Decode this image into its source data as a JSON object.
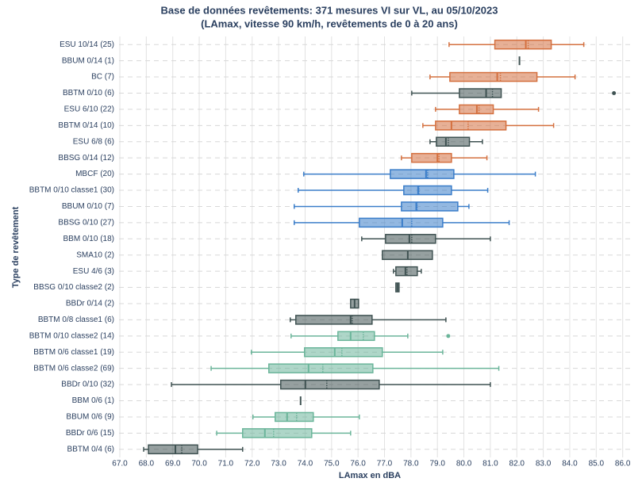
{
  "chart_data": {
    "type": "box",
    "title": "Base de données revêtements: 371 mesures VI sur VL, au 05/10/2023",
    "subtitle": "(LAmax, vitesse 90 km/h, revêtements de 0 à 20 ans)",
    "x_label": "LAmax en dBA",
    "y_label": "Type de revêtement",
    "categories": [
      "ESU 10/14 (25)",
      "BBUM 0/14 (1)",
      "BC (7)",
      "BBTM 0/10 (6)",
      "ESU 6/10 (22)",
      "BBTM 0/14 (10)",
      "ESU 6/8 (6)",
      "BBSG 0/14 (12)",
      "MBCF (20)",
      "BBTM 0/10 classe1 (30)",
      "BBUM 0/10 (7)",
      "BBSG 0/10 (27)",
      "BBM 0/10 (18)",
      "SMA10 (2)",
      "ESU 4/6 (3)",
      "BBSG 0/10 classe2 (2)",
      "BBDr 0/14 (2)",
      "BBTM 0/8 classe1 (6)",
      "BBTM 0/10 classe2 (14)",
      "BBTM 0/6 classe1 (19)",
      "BBTM 0/6 classe2 (69)",
      "BBDr 0/10 (32)",
      "BBM 0/6 (1)",
      "BBUM 0/6 (9)",
      "BBDr 0/6 (15)",
      "BBTM 0/4 (6)"
    ],
    "boxes": [
      {
        "min": 79.44,
        "q1": 81.17,
        "median": 82.34,
        "mean": 82.43,
        "q3": 83.3,
        "max": 84.53,
        "color": "#d4703f"
      },
      {
        "median": 82.1,
        "color": "#3f5252"
      },
      {
        "min": 78.72,
        "q1": 79.47,
        "median": 81.26,
        "mean": 81.38,
        "q3": 82.76,
        "max": 84.2,
        "color": "#d4703f"
      },
      {
        "min": 78.03,
        "q1": 79.83,
        "median": 80.84,
        "mean": 81.08,
        "q3": 81.41,
        "color": "#3f5252",
        "outliers": [
          85.67
        ]
      },
      {
        "min": 78.93,
        "q1": 79.83,
        "median": 80.49,
        "mean": 80.57,
        "q3": 81.11,
        "max": 82.82,
        "color": "#d4703f"
      },
      {
        "min": 78.45,
        "q1": 78.93,
        "median": 79.53,
        "mean": 80.16,
        "q3": 81.59,
        "max": 83.39,
        "color": "#d4703f"
      },
      {
        "min": 78.72,
        "q1": 78.96,
        "median": 79.32,
        "mean": 79.41,
        "q3": 80.21,
        "max": 80.7,
        "color": "#3f5252"
      },
      {
        "min": 77.64,
        "q1": 78.03,
        "median": 79.0,
        "mean": 79.06,
        "q3": 79.53,
        "max": 80.87,
        "color": "#d4703f"
      },
      {
        "min": 73.95,
        "q1": 77.22,
        "median": 78.57,
        "mean": 78.63,
        "q3": 79.62,
        "max": 82.7,
        "color": "#3a7dc9"
      },
      {
        "min": 73.74,
        "q1": 77.73,
        "median": 78.27,
        "mean": 78.3,
        "q3": 79.53,
        "max": 80.9,
        "color": "#3a7dc9"
      },
      {
        "min": 73.59,
        "q1": 77.64,
        "median": 78.2,
        "mean": 78.23,
        "q3": 79.77,
        "max": 80.19,
        "color": "#3a7dc9"
      },
      {
        "min": 73.59,
        "q1": 76.05,
        "median": 77.67,
        "mean": 78.03,
        "q3": 79.2,
        "max": 81.71,
        "color": "#3a7dc9"
      },
      {
        "min": 76.14,
        "q1": 77.04,
        "median": 77.94,
        "mean": 78.03,
        "q3": 78.93,
        "max": 81.0,
        "color": "#3f5252"
      },
      {
        "q1": 76.92,
        "median": 77.88,
        "q3": 78.81,
        "color": "#3f5252"
      },
      {
        "min": 77.34,
        "q1": 77.43,
        "median": 77.79,
        "mean": 77.85,
        "q3": 78.24,
        "max": 78.39,
        "color": "#3f5252"
      },
      {
        "q1": 77.43,
        "median": 77.49,
        "q3": 77.55,
        "color": "#3f5252"
      },
      {
        "q1": 75.72,
        "median": 75.87,
        "q3": 76.02,
        "color": "#3f5252"
      },
      {
        "min": 73.44,
        "q1": 73.65,
        "median": 75.72,
        "mean": 75.78,
        "q3": 76.53,
        "max": 79.32,
        "color": "#3f5252"
      },
      {
        "min": 73.47,
        "q1": 75.24,
        "median": 75.72,
        "mean": 76.2,
        "q3": 76.62,
        "max": 77.88,
        "color": "#6bb59a",
        "outliers": [
          79.41
        ]
      },
      {
        "min": 71.97,
        "q1": 73.98,
        "median": 75.12,
        "mean": 75.39,
        "q3": 76.92,
        "max": 79.2,
        "color": "#6bb59a"
      },
      {
        "min": 70.45,
        "q1": 72.63,
        "median": 74.13,
        "mean": 74.67,
        "q3": 76.56,
        "max": 81.32,
        "color": "#6bb59a"
      },
      {
        "min": 68.95,
        "q1": 73.08,
        "median": 74.01,
        "mean": 74.82,
        "q3": 76.8,
        "max": 81.0,
        "color": "#3f5252"
      },
      {
        "median": 73.83,
        "color": "#3f5252"
      },
      {
        "min": 72.03,
        "q1": 72.87,
        "median": 73.32,
        "mean": 73.68,
        "q3": 74.31,
        "max": 76.05,
        "color": "#6bb59a"
      },
      {
        "min": 70.66,
        "q1": 71.64,
        "median": 72.48,
        "mean": 72.81,
        "q3": 74.25,
        "max": 75.72,
        "color": "#6bb59a"
      },
      {
        "min": 67.9,
        "q1": 68.08,
        "median": 69.1,
        "mean": 69.34,
        "q3": 69.94,
        "max": 71.64,
        "color": "#3f5252"
      }
    ],
    "xlim": [
      66.97,
      86.4
    ],
    "xticks": [
      {
        "value": 67,
        "label": "67.0"
      },
      {
        "value": 68,
        "label": "68.0"
      },
      {
        "value": 69,
        "label": "69.0"
      },
      {
        "value": 70,
        "label": "70.0"
      },
      {
        "value": 71,
        "label": "71.0"
      },
      {
        "value": 72,
        "label": "72.0"
      },
      {
        "value": 73,
        "label": "73.0"
      },
      {
        "value": 74,
        "label": "74.0"
      },
      {
        "value": 75,
        "label": "75.0"
      },
      {
        "value": 76,
        "label": "76.0"
      },
      {
        "value": 77,
        "label": "77.0"
      },
      {
        "value": 78,
        "label": "78.0"
      },
      {
        "value": 79,
        "label": "79.0"
      },
      {
        "value": 80,
        "label": "80.0"
      },
      {
        "value": 81,
        "label": "81.0"
      },
      {
        "value": 82,
        "label": "82.0"
      },
      {
        "value": 83,
        "label": "83.0"
      },
      {
        "value": 84,
        "label": "84.0"
      },
      {
        "value": 85,
        "label": "85.0"
      },
      {
        "value": 86,
        "label": "86.0"
      }
    ],
    "grid": true
  }
}
